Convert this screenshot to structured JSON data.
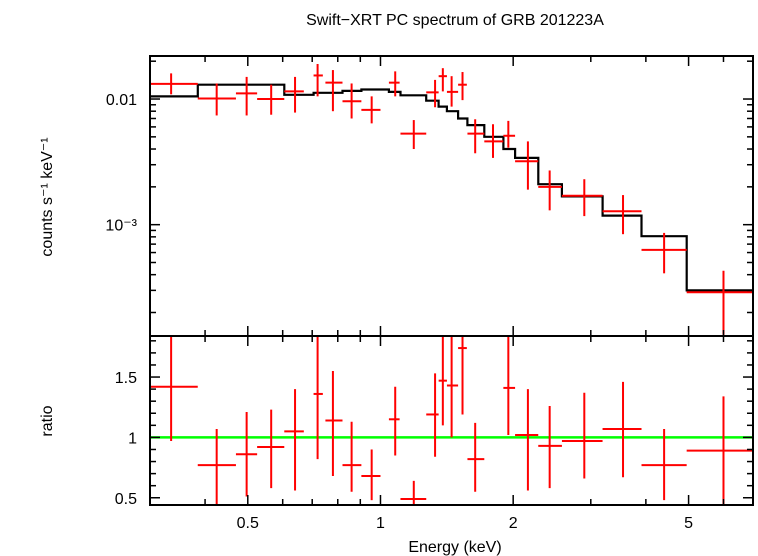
{
  "chart_data": [
    {
      "type": "line",
      "panel": "spectrum",
      "title": "Swift−XRT PC spectrum of GRB 201223A",
      "xlabel": "Energy (keV)",
      "ylabel": "counts s⁻¹ keV⁻¹",
      "xscale": "log",
      "yscale": "log",
      "xlim": [
        0.3,
        7.0
      ],
      "ylim": [
        0.00013,
        0.022
      ],
      "y_ticks": [
        {
          "value": 0.01,
          "label": "0.01"
        },
        {
          "value": 0.001,
          "label": "10⁻³"
        }
      ],
      "series": [
        {
          "type": "errorbar",
          "color": "#ff0000",
          "points": [
            {
              "x": 0.335,
              "xlo": 0.3,
              "xhi": 0.385,
              "y": 0.0132,
              "ylo": 0.0109,
              "yhi": 0.016
            },
            {
              "x": 0.425,
              "xlo": 0.385,
              "xhi": 0.47,
              "y": 0.0101,
              "ylo": 0.0074,
              "yhi": 0.0133
            },
            {
              "x": 0.497,
              "xlo": 0.47,
              "xhi": 0.525,
              "y": 0.0111,
              "ylo": 0.0074,
              "yhi": 0.015
            },
            {
              "x": 0.565,
              "xlo": 0.525,
              "xhi": 0.605,
              "y": 0.01,
              "ylo": 0.0075,
              "yhi": 0.013
            },
            {
              "x": 0.64,
              "xlo": 0.605,
              "xhi": 0.67,
              "y": 0.0115,
              "ylo": 0.0078,
              "yhi": 0.015
            },
            {
              "x": 0.72,
              "xlo": 0.705,
              "xhi": 0.74,
              "y": 0.0154,
              "ylo": 0.0105,
              "yhi": 0.019
            },
            {
              "x": 0.78,
              "xlo": 0.75,
              "xhi": 0.82,
              "y": 0.0135,
              "ylo": 0.008,
              "yhi": 0.017
            },
            {
              "x": 0.86,
              "xlo": 0.82,
              "xhi": 0.905,
              "y": 0.0096,
              "ylo": 0.007,
              "yhi": 0.0133
            },
            {
              "x": 0.955,
              "xlo": 0.905,
              "xhi": 1.0,
              "y": 0.0082,
              "ylo": 0.0064,
              "yhi": 0.0105
            },
            {
              "x": 1.08,
              "xlo": 1.045,
              "xhi": 1.105,
              "y": 0.0135,
              "ylo": 0.0105,
              "yhi": 0.0166
            },
            {
              "x": 1.19,
              "xlo": 1.11,
              "xhi": 1.27,
              "y": 0.0053,
              "ylo": 0.004,
              "yhi": 0.0068
            },
            {
              "x": 1.33,
              "xlo": 1.27,
              "xhi": 1.355,
              "y": 0.0113,
              "ylo": 0.0086,
              "yhi": 0.0142
            },
            {
              "x": 1.385,
              "xlo": 1.355,
              "xhi": 1.415,
              "y": 0.0152,
              "ylo": 0.0115,
              "yhi": 0.0176
            },
            {
              "x": 1.45,
              "xlo": 1.415,
              "xhi": 1.5,
              "y": 0.0114,
              "ylo": 0.0087,
              "yhi": 0.0152
            },
            {
              "x": 1.535,
              "xlo": 1.5,
              "xhi": 1.57,
              "y": 0.013,
              "ylo": 0.0098,
              "yhi": 0.0164
            },
            {
              "x": 1.64,
              "xlo": 1.575,
              "xhi": 1.72,
              "y": 0.0053,
              "ylo": 0.0037,
              "yhi": 0.0069
            },
            {
              "x": 1.8,
              "xlo": 1.72,
              "xhi": 1.9,
              "y": 0.0046,
              "ylo": 0.0034,
              "yhi": 0.0063
            },
            {
              "x": 1.95,
              "xlo": 1.9,
              "xhi": 2.02,
              "y": 0.0051,
              "ylo": 0.0041,
              "yhi": 0.0067
            },
            {
              "x": 2.16,
              "xlo": 2.02,
              "xhi": 2.28,
              "y": 0.0032,
              "ylo": 0.0019,
              "yhi": 0.0046
            },
            {
              "x": 2.42,
              "xlo": 2.28,
              "xhi": 2.58,
              "y": 0.002,
              "ylo": 0.0013,
              "yhi": 0.0027
            },
            {
              "x": 2.9,
              "xlo": 2.58,
              "xhi": 3.19,
              "y": 0.0017,
              "ylo": 0.00117,
              "yhi": 0.0023
            },
            {
              "x": 3.55,
              "xlo": 3.19,
              "xhi": 3.91,
              "y": 0.00128,
              "ylo": 0.00084,
              "yhi": 0.00172
            },
            {
              "x": 4.4,
              "xlo": 3.91,
              "xhi": 4.95,
              "y": 0.00063,
              "ylo": 0.00041,
              "yhi": 0.00086
            },
            {
              "x": 6.0,
              "xlo": 4.95,
              "xhi": 7.0,
              "y": 0.00029,
              "ylo": 0.000133,
              "yhi": 0.00043
            }
          ]
        },
        {
          "type": "step",
          "color": "#000000",
          "bins": [
            {
              "xlo": 0.3,
              "xhi": 0.385,
              "y": 0.0105
            },
            {
              "xlo": 0.385,
              "xhi": 0.605,
              "y": 0.013
            },
            {
              "xlo": 0.605,
              "xhi": 0.705,
              "y": 0.0108
            },
            {
              "xlo": 0.705,
              "xhi": 0.82,
              "y": 0.0112
            },
            {
              "xlo": 0.82,
              "xhi": 0.905,
              "y": 0.0116
            },
            {
              "xlo": 0.905,
              "xhi": 1.045,
              "y": 0.0119
            },
            {
              "xlo": 1.045,
              "xhi": 1.11,
              "y": 0.0114
            },
            {
              "xlo": 1.11,
              "xhi": 1.27,
              "y": 0.0107
            },
            {
              "xlo": 1.27,
              "xhi": 1.355,
              "y": 0.0097
            },
            {
              "xlo": 1.355,
              "xhi": 1.415,
              "y": 0.0087
            },
            {
              "xlo": 1.415,
              "xhi": 1.5,
              "y": 0.008
            },
            {
              "xlo": 1.5,
              "xhi": 1.575,
              "y": 0.007
            },
            {
              "xlo": 1.575,
              "xhi": 1.72,
              "y": 0.0062
            },
            {
              "xlo": 1.72,
              "xhi": 1.9,
              "y": 0.005
            },
            {
              "xlo": 1.9,
              "xhi": 2.02,
              "y": 0.004
            },
            {
              "xlo": 2.02,
              "xhi": 2.28,
              "y": 0.0034
            },
            {
              "xlo": 2.28,
              "xhi": 2.58,
              "y": 0.0021
            },
            {
              "xlo": 2.58,
              "xhi": 3.19,
              "y": 0.00168
            },
            {
              "xlo": 3.19,
              "xhi": 3.91,
              "y": 0.00118
            },
            {
              "xlo": 3.91,
              "xhi": 4.95,
              "y": 0.00081
            },
            {
              "xlo": 4.95,
              "xhi": 7.0,
              "y": 0.0003
            }
          ]
        }
      ]
    },
    {
      "type": "scatter",
      "panel": "ratio",
      "xlabel": "Energy (keV)",
      "ylabel": "ratio",
      "xscale": "log",
      "yscale": "linear",
      "xlim": [
        0.3,
        7.0
      ],
      "ylim": [
        0.44,
        1.84
      ],
      "x_ticks": [
        {
          "value": 0.5,
          "label": "0.5"
        },
        {
          "value": 1,
          "label": "1"
        },
        {
          "value": 2,
          "label": "2"
        },
        {
          "value": 5,
          "label": "5"
        }
      ],
      "y_ticks": [
        {
          "value": 0.5,
          "label": "0.5"
        },
        {
          "value": 1,
          "label": "1"
        },
        {
          "value": 1.5,
          "label": "1.5"
        }
      ],
      "reference_line": {
        "y": 1.0,
        "color": "#00ff00"
      },
      "series": [
        {
          "type": "errorbar",
          "color": "#ff0000",
          "points": [
            {
              "x": 0.335,
              "xlo": 0.3,
              "xhi": 0.385,
              "y": 1.42,
              "ylo": 0.97,
              "yhi": 1.84
            },
            {
              "x": 0.425,
              "xlo": 0.385,
              "xhi": 0.47,
              "y": 0.77,
              "ylo": 0.44,
              "yhi": 1.07
            },
            {
              "x": 0.497,
              "xlo": 0.47,
              "xhi": 0.525,
              "y": 0.86,
              "ylo": 0.51,
              "yhi": 1.21
            },
            {
              "x": 0.565,
              "xlo": 0.525,
              "xhi": 0.605,
              "y": 0.92,
              "ylo": 0.58,
              "yhi": 1.23
            },
            {
              "x": 0.64,
              "xlo": 0.605,
              "xhi": 0.67,
              "y": 1.05,
              "ylo": 0.56,
              "yhi": 1.4
            },
            {
              "x": 0.72,
              "xlo": 0.705,
              "xhi": 0.74,
              "y": 1.36,
              "ylo": 0.82,
              "yhi": 1.84
            },
            {
              "x": 0.78,
              "xlo": 0.75,
              "xhi": 0.82,
              "y": 1.14,
              "ylo": 0.68,
              "yhi": 1.55
            },
            {
              "x": 0.86,
              "xlo": 0.82,
              "xhi": 0.905,
              "y": 0.77,
              "ylo": 0.55,
              "yhi": 1.13
            },
            {
              "x": 0.955,
              "xlo": 0.905,
              "xhi": 1.0,
              "y": 0.68,
              "ylo": 0.48,
              "yhi": 0.9
            },
            {
              "x": 1.08,
              "xlo": 1.045,
              "xhi": 1.105,
              "y": 1.15,
              "ylo": 0.85,
              "yhi": 1.42
            },
            {
              "x": 1.19,
              "xlo": 1.11,
              "xhi": 1.27,
              "y": 0.49,
              "ylo": 0.44,
              "yhi": 0.64
            },
            {
              "x": 1.33,
              "xlo": 1.27,
              "xhi": 1.355,
              "y": 1.19,
              "ylo": 0.84,
              "yhi": 1.53
            },
            {
              "x": 1.385,
              "xlo": 1.355,
              "xhi": 1.415,
              "y": 1.47,
              "ylo": 1.1,
              "yhi": 1.84
            },
            {
              "x": 1.45,
              "xlo": 1.415,
              "xhi": 1.5,
              "y": 1.43,
              "ylo": 1.0,
              "yhi": 1.84
            },
            {
              "x": 1.535,
              "xlo": 1.5,
              "xhi": 1.57,
              "y": 1.74,
              "ylo": 1.19,
              "yhi": 1.84
            },
            {
              "x": 1.64,
              "xlo": 1.575,
              "xhi": 1.72,
              "y": 0.82,
              "ylo": 0.55,
              "yhi": 1.12
            },
            {
              "x": 1.95,
              "xlo": 1.9,
              "xhi": 2.02,
              "y": 1.41,
              "ylo": 1.02,
              "yhi": 1.84
            },
            {
              "x": 2.16,
              "xlo": 2.02,
              "xhi": 2.28,
              "y": 1.02,
              "ylo": 0.56,
              "yhi": 1.4
            },
            {
              "x": 2.42,
              "xlo": 2.28,
              "xhi": 2.58,
              "y": 0.93,
              "ylo": 0.58,
              "yhi": 1.26
            },
            {
              "x": 2.9,
              "xlo": 2.58,
              "xhi": 3.19,
              "y": 0.97,
              "ylo": 0.66,
              "yhi": 1.37
            },
            {
              "x": 3.55,
              "xlo": 3.19,
              "xhi": 3.91,
              "y": 1.07,
              "ylo": 0.67,
              "yhi": 1.46
            },
            {
              "x": 4.4,
              "xlo": 3.91,
              "xhi": 4.95,
              "y": 0.77,
              "ylo": 0.48,
              "yhi": 1.07
            },
            {
              "x": 6.0,
              "xlo": 4.95,
              "xhi": 7.0,
              "y": 0.89,
              "ylo": 0.44,
              "yhi": 1.34
            }
          ]
        }
      ]
    }
  ]
}
